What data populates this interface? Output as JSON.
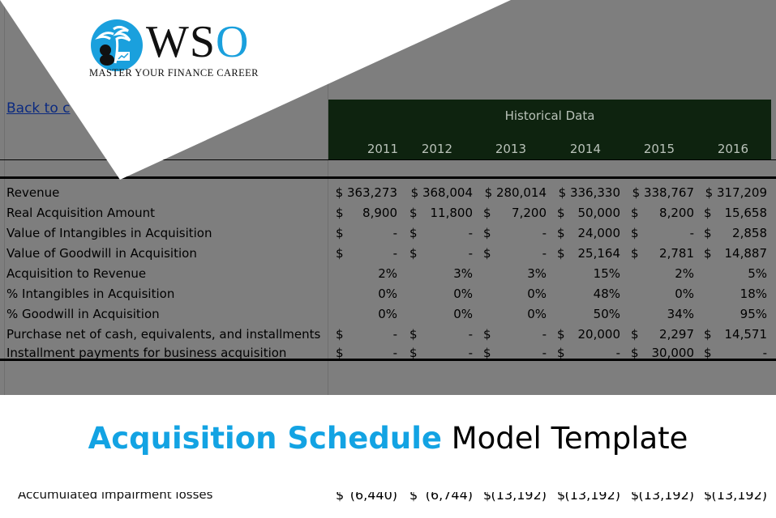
{
  "logo": {
    "wordmark_prefix": "WS",
    "wordmark_o": "O",
    "tagline": "MASTER YOUR FINANCE CAREER",
    "brand_color": "#1aa0dd"
  },
  "back_link": "Back to c",
  "header": {
    "title": "Historical Data",
    "years": [
      "2011",
      "2012",
      "2013",
      "2014",
      "2015",
      "2016"
    ],
    "band_color": "#0e230f"
  },
  "rows": [
    {
      "label": "Revenue",
      "cells": [
        {
          "cur": "",
          "num": "$ 363,273"
        },
        {
          "cur": "",
          "num": "$ 368,004"
        },
        {
          "cur": "",
          "num": "$ 280,014"
        },
        {
          "cur": "",
          "num": "$ 336,330"
        },
        {
          "cur": "",
          "num": "$ 338,767"
        },
        {
          "cur": "",
          "num": "$ 317,209"
        }
      ]
    },
    {
      "label": "Real Acquisition Amount",
      "cells": [
        {
          "cur": "$",
          "num": "8,900"
        },
        {
          "cur": "$",
          "num": "11,800"
        },
        {
          "cur": "$",
          "num": "7,200"
        },
        {
          "cur": "$",
          "num": "50,000"
        },
        {
          "cur": "$",
          "num": "8,200"
        },
        {
          "cur": "$",
          "num": "15,658"
        }
      ]
    },
    {
      "label": "Value of Intangibles in Acquisition",
      "cells": [
        {
          "cur": "$",
          "num": "-"
        },
        {
          "cur": "$",
          "num": "-"
        },
        {
          "cur": "$",
          "num": "-"
        },
        {
          "cur": "$",
          "num": "24,000"
        },
        {
          "cur": "$",
          "num": "-"
        },
        {
          "cur": "$",
          "num": "2,858"
        }
      ]
    },
    {
      "label": "Value of Goodwill in Acquisition",
      "cells": [
        {
          "cur": "$",
          "num": "-"
        },
        {
          "cur": "$",
          "num": "-"
        },
        {
          "cur": "$",
          "num": "-"
        },
        {
          "cur": "$",
          "num": "25,164"
        },
        {
          "cur": "$",
          "num": "2,781"
        },
        {
          "cur": "$",
          "num": "14,887"
        }
      ]
    },
    {
      "label": "Acquisition to Revenue",
      "cells": [
        {
          "cur": "",
          "num": "2%"
        },
        {
          "cur": "",
          "num": "3%"
        },
        {
          "cur": "",
          "num": "3%"
        },
        {
          "cur": "",
          "num": "15%"
        },
        {
          "cur": "",
          "num": "2%"
        },
        {
          "cur": "",
          "num": "5%"
        }
      ]
    },
    {
      "label": "% Intangibles in Acquisition",
      "cells": [
        {
          "cur": "",
          "num": "0%"
        },
        {
          "cur": "",
          "num": "0%"
        },
        {
          "cur": "",
          "num": "0%"
        },
        {
          "cur": "",
          "num": "48%"
        },
        {
          "cur": "",
          "num": "0%"
        },
        {
          "cur": "",
          "num": "18%"
        }
      ]
    },
    {
      "label": "% Goodwill in Acquisition",
      "cells": [
        {
          "cur": "",
          "num": "0%"
        },
        {
          "cur": "",
          "num": "0%"
        },
        {
          "cur": "",
          "num": "0%"
        },
        {
          "cur": "",
          "num": "50%"
        },
        {
          "cur": "",
          "num": "34%"
        },
        {
          "cur": "",
          "num": "95%"
        }
      ]
    },
    {
      "label": "Purchase net of cash, equivalents, and installments",
      "cells": [
        {
          "cur": "$",
          "num": "-"
        },
        {
          "cur": "$",
          "num": "-"
        },
        {
          "cur": "$",
          "num": "-"
        },
        {
          "cur": "$",
          "num": "20,000"
        },
        {
          "cur": "$",
          "num": "2,297"
        },
        {
          "cur": "$",
          "num": "14,571"
        }
      ]
    },
    {
      "label": "Installment payments for business acquisition",
      "cells": [
        {
          "cur": "$",
          "num": "-"
        },
        {
          "cur": "$",
          "num": "-"
        },
        {
          "cur": "$",
          "num": "-"
        },
        {
          "cur": "$",
          "num": "-"
        },
        {
          "cur": "$",
          "num": "30,000"
        },
        {
          "cur": "$",
          "num": "-"
        }
      ]
    }
  ],
  "bottom_row": {
    "label": "Accumulated impairment losses",
    "cells": [
      {
        "cur": "$",
        "num": "(6,440)"
      },
      {
        "cur": "$",
        "num": "(6,744)"
      },
      {
        "cur": "$",
        "num": "(13,192)"
      },
      {
        "cur": "$",
        "num": "(13,192)"
      },
      {
        "cur": "$",
        "num": "(13,192)"
      },
      {
        "cur": "$",
        "num": "(13,192)"
      }
    ]
  },
  "banner": {
    "highlight": "Acquisition Schedule",
    "rest": " Model Template",
    "highlight_color": "#13a3e3"
  }
}
